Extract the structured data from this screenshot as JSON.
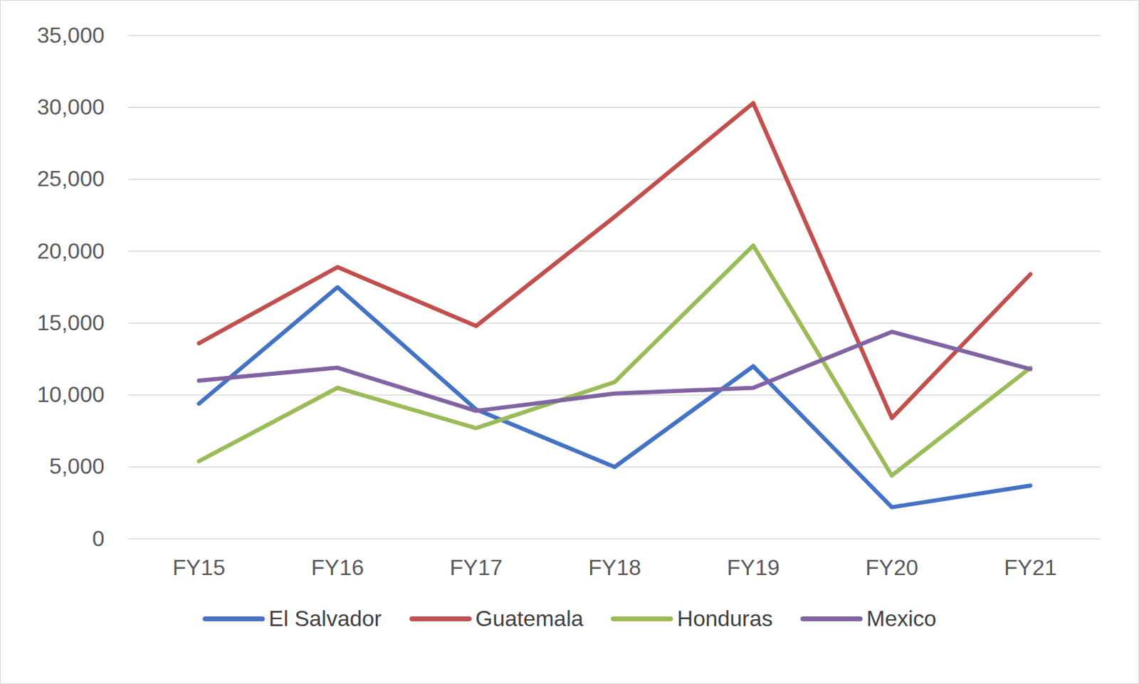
{
  "chart_data": {
    "type": "line",
    "categories": [
      "FY15",
      "FY16",
      "FY17",
      "FY18",
      "FY19",
      "FY20",
      "FY21"
    ],
    "series": [
      {
        "name": "El Salvador",
        "color": "#4472c4",
        "values": [
          9400,
          17500,
          9000,
          5000,
          12000,
          2200,
          3700
        ]
      },
      {
        "name": "Guatemala",
        "color": "#c0504d",
        "values": [
          13600,
          18900,
          14800,
          22400,
          30300,
          8400,
          18400
        ]
      },
      {
        "name": "Honduras",
        "color": "#9bbb59",
        "values": [
          5400,
          10500,
          7700,
          10900,
          20400,
          4400,
          11900
        ]
      },
      {
        "name": "Mexico",
        "color": "#8064a2",
        "values": [
          11000,
          11900,
          8900,
          10100,
          10500,
          14400,
          11800
        ]
      }
    ],
    "ylim": [
      0,
      35000
    ],
    "yticks": [
      0,
      {
        "value": 5000,
        "label": "5,000"
      },
      {
        "value": 10000,
        "label": "10,000"
      },
      {
        "value": 15000,
        "label": "15,000"
      },
      {
        "value": 20000,
        "label": "20,000"
      },
      {
        "value": 25000,
        "label": "25,000"
      },
      {
        "value": 30000,
        "label": "30,000"
      },
      {
        "value": 35000,
        "label": "35,000"
      }
    ],
    "grid": true,
    "legend": "bottom"
  }
}
